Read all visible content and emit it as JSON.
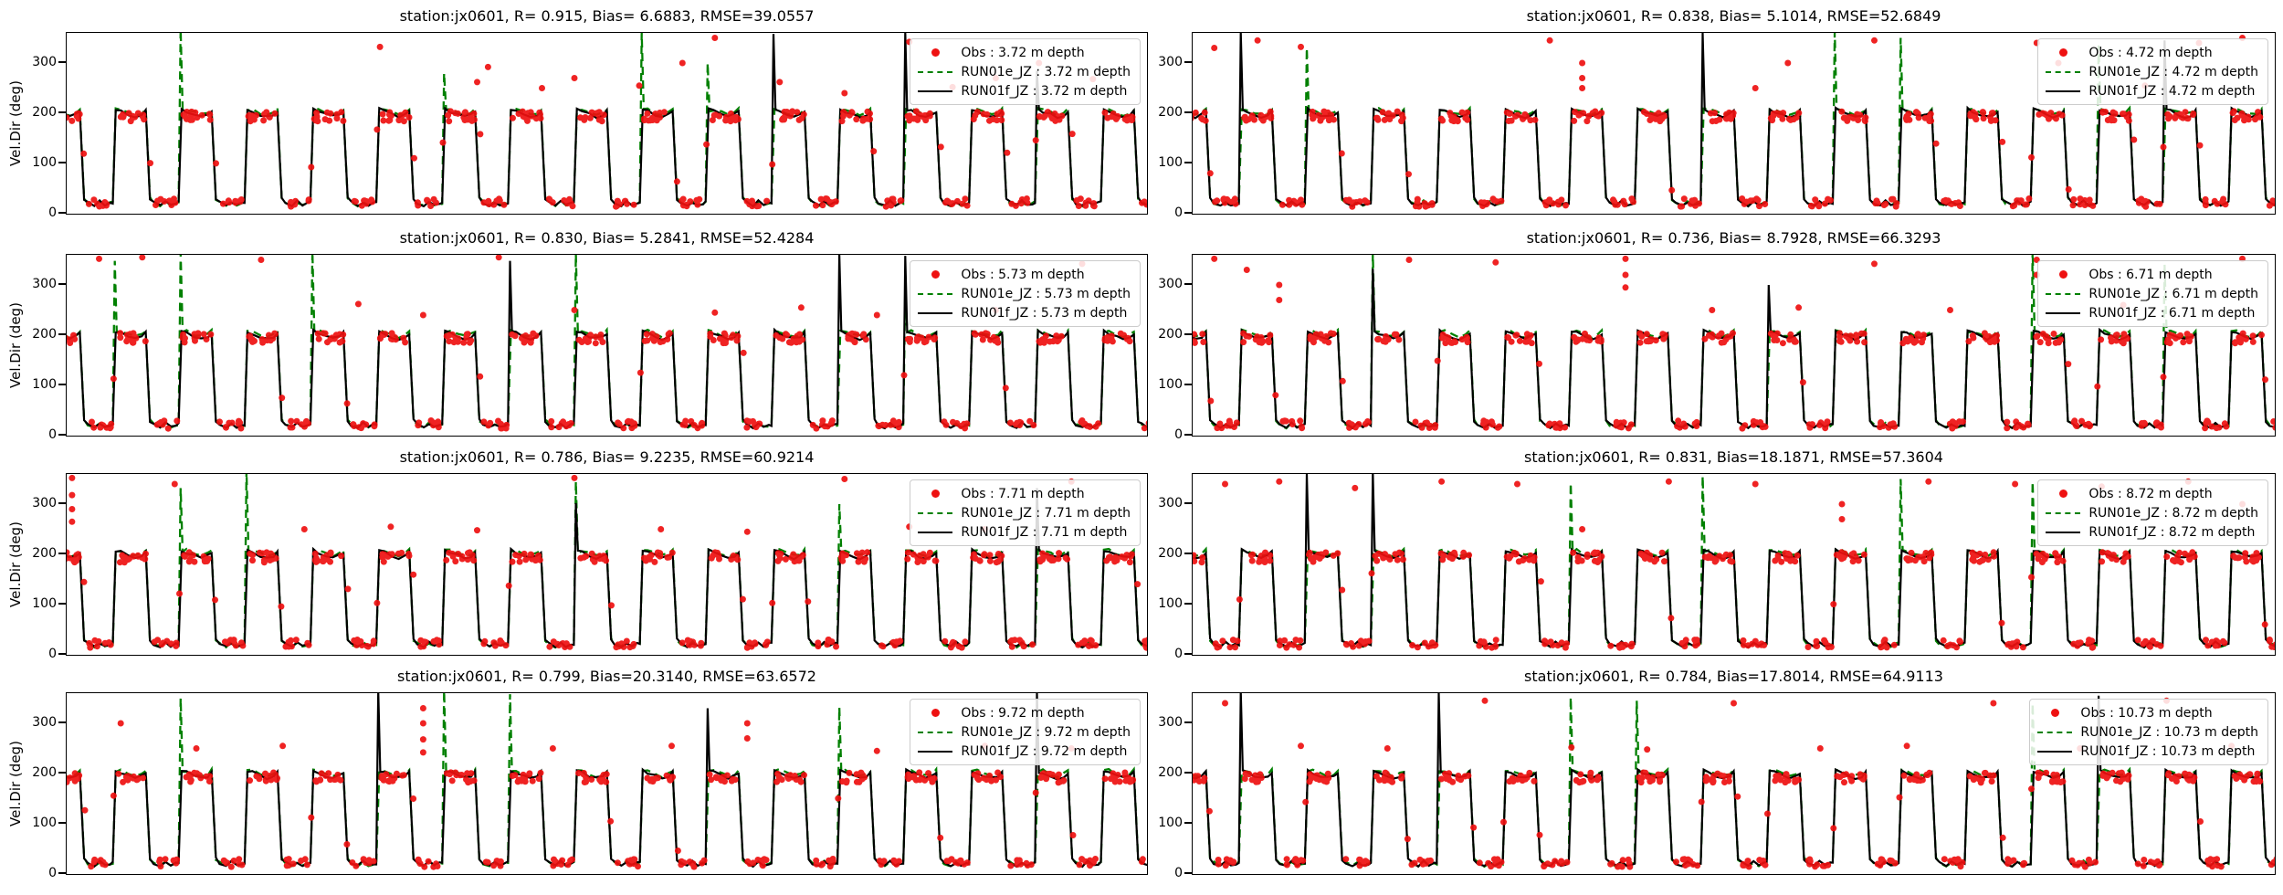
{
  "figure": {
    "ylabel": "Vel.Dir (deg)"
  },
  "colors": {
    "obs": "#ee1111",
    "run01e": "#008000",
    "run01f": "#000000",
    "legend_border": "#cccccc"
  },
  "chart_data": [
    {
      "type": "line",
      "title": "station:jx0601, R= 0.915, Bias= 6.6883, RMSE=39.0557",
      "ylabel": "Vel.Dir (deg)",
      "ylim": [
        0,
        360
      ],
      "yticks": [
        0,
        100,
        200,
        300
      ],
      "x_axis": "time (no tick labels shown)",
      "n_cycles": 16.4,
      "high": 200,
      "low": 20,
      "seed": 11,
      "series": [
        {
          "name": "Obs",
          "label": "Obs : 3.72 m depth",
          "style": "scatter",
          "color": "#ee1111"
        },
        {
          "name": "RUN01e_JZ",
          "label": "RUN01e_JZ : 3.72 m depth",
          "style": "dashed",
          "color": "#008000"
        },
        {
          "name": "RUN01f_JZ",
          "label": "RUN01f_JZ : 3.72 m depth",
          "style": "solid",
          "color": "#000000"
        }
      ],
      "e_spikes": [
        [
          0,
          362
        ],
        [
          2,
          368
        ],
        [
          6,
          280
        ],
        [
          9,
          360
        ],
        [
          10,
          300
        ]
      ],
      "f_spikes": [
        [
          0,
          318
        ],
        [
          11,
          358
        ],
        [
          13,
          362
        ],
        [
          15,
          285
        ]
      ],
      "obs_outliers": [
        [
          0.29,
          332
        ],
        [
          0.38,
          262
        ],
        [
          0.39,
          292
        ],
        [
          0.44,
          250
        ],
        [
          0.47,
          270
        ],
        [
          0.53,
          255
        ],
        [
          0.57,
          300
        ],
        [
          0.6,
          350
        ],
        [
          0.66,
          262
        ],
        [
          0.72,
          240
        ],
        [
          0.78,
          342
        ],
        [
          0.82,
          252
        ],
        [
          0.86,
          270
        ],
        [
          0.9,
          300
        ],
        [
          0.95,
          268
        ]
      ]
    },
    {
      "type": "line",
      "title": "station:jx0601, R= 0.838, Bias= 5.1014, RMSE=52.6849",
      "ylim": [
        0,
        360
      ],
      "yticks": [
        0,
        100,
        200,
        300
      ],
      "x_axis": "time (no tick labels shown)",
      "n_cycles": 16.4,
      "high": 200,
      "low": 20,
      "seed": 22,
      "series": [
        {
          "name": "Obs",
          "label": "Obs : 4.72 m depth",
          "style": "scatter",
          "color": "#ee1111"
        },
        {
          "name": "RUN01e_JZ",
          "label": "RUN01e_JZ : 4.72 m depth",
          "style": "dashed",
          "color": "#008000"
        },
        {
          "name": "RUN01f_JZ",
          "label": "RUN01f_JZ : 4.72 m depth",
          "style": "solid",
          "color": "#000000"
        }
      ],
      "e_spikes": [
        [
          2,
          330
        ],
        [
          10,
          362
        ],
        [
          11,
          350
        ],
        [
          14,
          335
        ]
      ],
      "f_spikes": [
        [
          1,
          362
        ],
        [
          8,
          360
        ],
        [
          15,
          345
        ]
      ],
      "obs_outliers": [
        [
          0.02,
          330
        ],
        [
          0.06,
          345
        ],
        [
          0.1,
          332
        ],
        [
          0.33,
          345
        ],
        [
          0.36,
          300
        ],
        [
          0.36,
          270
        ],
        [
          0.36,
          250
        ],
        [
          0.52,
          250
        ],
        [
          0.55,
          300
        ],
        [
          0.63,
          345
        ],
        [
          0.78,
          340
        ],
        [
          0.8,
          300
        ],
        [
          0.88,
          255
        ],
        [
          0.93,
          340
        ],
        [
          0.97,
          350
        ]
      ]
    },
    {
      "type": "line",
      "title": "station:jx0601, R= 0.830, Bias= 5.2841, RMSE=52.4284",
      "ylabel": "Vel.Dir (deg)",
      "ylim": [
        0,
        360
      ],
      "yticks": [
        0,
        100,
        200,
        300
      ],
      "x_axis": "time (no tick labels shown)",
      "n_cycles": 16.4,
      "high": 200,
      "low": 20,
      "seed": 33,
      "series": [
        {
          "name": "Obs",
          "label": "Obs : 5.73 m depth",
          "style": "scatter",
          "color": "#ee1111"
        },
        {
          "name": "RUN01e_JZ",
          "label": "RUN01e_JZ : 5.73 m depth",
          "style": "dashed",
          "color": "#008000"
        },
        {
          "name": "RUN01f_JZ",
          "label": "RUN01f_JZ : 5.73 m depth",
          "style": "solid",
          "color": "#000000"
        }
      ],
      "e_spikes": [
        [
          1,
          348
        ],
        [
          2,
          365
        ],
        [
          4,
          368
        ],
        [
          8,
          362
        ],
        [
          13,
          290
        ]
      ],
      "f_spikes": [
        [
          7,
          348
        ],
        [
          12,
          362
        ],
        [
          13,
          358
        ]
      ],
      "obs_outliers": [
        [
          0.03,
          352
        ],
        [
          0.07,
          355
        ],
        [
          0.18,
          350
        ],
        [
          0.27,
          262
        ],
        [
          0.33,
          240
        ],
        [
          0.4,
          355
        ],
        [
          0.47,
          250
        ],
        [
          0.6,
          245
        ],
        [
          0.68,
          255
        ],
        [
          0.75,
          240
        ],
        [
          0.86,
          250
        ],
        [
          0.94,
          342
        ]
      ]
    },
    {
      "type": "line",
      "title": "station:jx0601, R= 0.736, Bias= 8.7928, RMSE=66.3293",
      "ylim": [
        0,
        360
      ],
      "yticks": [
        0,
        100,
        200,
        300
      ],
      "x_axis": "time (no tick labels shown)",
      "n_cycles": 16.4,
      "high": 200,
      "low": 20,
      "seed": 44,
      "series": [
        {
          "name": "Obs",
          "label": "Obs : 6.71 m depth",
          "style": "scatter",
          "color": "#ee1111"
        },
        {
          "name": "RUN01e_JZ",
          "label": "RUN01e_JZ : 6.71 m depth",
          "style": "dashed",
          "color": "#008000"
        },
        {
          "name": "RUN01f_JZ",
          "label": "RUN01f_JZ : 6.71 m depth",
          "style": "solid",
          "color": "#000000"
        }
      ],
      "e_spikes": [
        [
          3,
          362
        ],
        [
          13,
          368
        ],
        [
          15,
          342
        ]
      ],
      "f_spikes": [
        [
          3,
          332
        ],
        [
          9,
          300
        ]
      ],
      "obs_outliers": [
        [
          0.02,
          352
        ],
        [
          0.05,
          330
        ],
        [
          0.08,
          300
        ],
        [
          0.08,
          270
        ],
        [
          0.2,
          350
        ],
        [
          0.28,
          345
        ],
        [
          0.4,
          352
        ],
        [
          0.4,
          320
        ],
        [
          0.4,
          295
        ],
        [
          0.48,
          250
        ],
        [
          0.56,
          255
        ],
        [
          0.63,
          342
        ],
        [
          0.7,
          250
        ],
        [
          0.78,
          350
        ],
        [
          0.78,
          320
        ],
        [
          0.86,
          260
        ],
        [
          0.97,
          352
        ]
      ]
    },
    {
      "type": "line",
      "title": "station:jx0601, R= 0.786, Bias= 9.2235, RMSE=60.9214",
      "ylabel": "Vel.Dir (deg)",
      "ylim": [
        0,
        360
      ],
      "yticks": [
        0,
        100,
        200,
        300
      ],
      "x_axis": "time (no tick labels shown)",
      "n_cycles": 16.4,
      "high": 200,
      "low": 20,
      "seed": 55,
      "series": [
        {
          "name": "Obs",
          "label": "Obs : 7.71 m depth",
          "style": "scatter",
          "color": "#ee1111"
        },
        {
          "name": "RUN01e_JZ",
          "label": "RUN01e_JZ : 7.71 m depth",
          "style": "dashed",
          "color": "#008000"
        },
        {
          "name": "RUN01f_JZ",
          "label": "RUN01f_JZ : 7.71 m depth",
          "style": "solid",
          "color": "#000000"
        }
      ],
      "e_spikes": [
        [
          2,
          332
        ],
        [
          3,
          368
        ],
        [
          8,
          345
        ],
        [
          12,
          300
        ]
      ],
      "f_spikes": [
        [
          8,
          302
        ],
        [
          15,
          332
        ]
      ],
      "obs_outliers": [
        [
          0.005,
          352
        ],
        [
          0.005,
          318
        ],
        [
          0.005,
          290
        ],
        [
          0.005,
          265
        ],
        [
          0.1,
          340
        ],
        [
          0.22,
          250
        ],
        [
          0.3,
          255
        ],
        [
          0.38,
          248
        ],
        [
          0.47,
          352
        ],
        [
          0.55,
          250
        ],
        [
          0.63,
          245
        ],
        [
          0.72,
          350
        ],
        [
          0.78,
          255
        ],
        [
          0.85,
          250
        ],
        [
          0.93,
          345
        ]
      ]
    },
    {
      "type": "line",
      "title": "station:jx0601, R= 0.831, Bias=18.1871, RMSE=57.3604",
      "ylim": [
        0,
        360
      ],
      "yticks": [
        0,
        100,
        200,
        300
      ],
      "x_axis": "time (no tick labels shown)",
      "n_cycles": 16.4,
      "high": 200,
      "low": 20,
      "seed": 66,
      "series": [
        {
          "name": "Obs",
          "label": "Obs : 8.72 m depth",
          "style": "scatter",
          "color": "#ee1111"
        },
        {
          "name": "RUN01e_JZ",
          "label": "RUN01e_JZ : 8.72 m depth",
          "style": "dashed",
          "color": "#008000"
        },
        {
          "name": "RUN01f_JZ",
          "label": "RUN01f_JZ : 8.72 m depth",
          "style": "solid",
          "color": "#000000"
        }
      ],
      "e_spikes": [
        [
          6,
          342
        ],
        [
          8,
          356
        ],
        [
          11,
          350
        ],
        [
          13,
          345
        ]
      ],
      "f_spikes": [
        [
          2,
          360
        ],
        [
          3,
          365
        ]
      ],
      "obs_outliers": [
        [
          0.03,
          340
        ],
        [
          0.08,
          345
        ],
        [
          0.15,
          332
        ],
        [
          0.23,
          345
        ],
        [
          0.3,
          340
        ],
        [
          0.36,
          250
        ],
        [
          0.44,
          345
        ],
        [
          0.52,
          340
        ],
        [
          0.6,
          300
        ],
        [
          0.6,
          270
        ],
        [
          0.68,
          345
        ],
        [
          0.76,
          340
        ],
        [
          0.84,
          335
        ],
        [
          0.92,
          345
        ],
        [
          0.97,
          300
        ]
      ]
    },
    {
      "type": "line",
      "title": "station:jx0601, R= 0.799, Bias=20.3140, RMSE=63.6572",
      "ylabel": "Vel.Dir (deg)",
      "ylim": [
        0,
        360
      ],
      "yticks": [
        0,
        100,
        200,
        300
      ],
      "x_axis": "time (no tick labels shown)",
      "n_cycles": 16.4,
      "high": 198,
      "low": 20,
      "seed": 77,
      "series": [
        {
          "name": "Obs",
          "label": "Obs : 9.72 m depth",
          "style": "scatter",
          "color": "#ee1111"
        },
        {
          "name": "RUN01e_JZ",
          "label": "RUN01e_JZ : 9.72 m depth",
          "style": "dashed",
          "color": "#008000"
        },
        {
          "name": "RUN01f_JZ",
          "label": "RUN01f_JZ : 9.72 m depth",
          "style": "solid",
          "color": "#000000"
        }
      ],
      "e_spikes": [
        [
          2,
          350
        ],
        [
          6,
          365
        ],
        [
          7,
          358
        ],
        [
          12,
          332
        ]
      ],
      "f_spikes": [
        [
          0,
          358
        ],
        [
          5,
          365
        ],
        [
          10,
          330
        ],
        [
          15,
          360
        ]
      ],
      "obs_outliers": [
        [
          0.05,
          300
        ],
        [
          0.12,
          250
        ],
        [
          0.2,
          255
        ],
        [
          0.33,
          330
        ],
        [
          0.33,
          300
        ],
        [
          0.33,
          268
        ],
        [
          0.33,
          242
        ],
        [
          0.45,
          250
        ],
        [
          0.56,
          255
        ],
        [
          0.63,
          300
        ],
        [
          0.63,
          270
        ],
        [
          0.75,
          245
        ],
        [
          0.85,
          255
        ],
        [
          0.93,
          250
        ]
      ]
    },
    {
      "type": "line",
      "title": "station:jx0601, R= 0.784, Bias=17.8014, RMSE=64.9113",
      "ylim": [
        0,
        360
      ],
      "yticks": [
        0,
        100,
        200,
        300
      ],
      "x_axis": "time (no tick labels shown)",
      "n_cycles": 16.4,
      "high": 198,
      "low": 20,
      "seed": 88,
      "series": [
        {
          "name": "Obs",
          "label": "Obs : 10.73 m depth",
          "style": "scatter",
          "color": "#ee1111"
        },
        {
          "name": "RUN01e_JZ",
          "label": "RUN01e_JZ : 10.73 m depth",
          "style": "dashed",
          "color": "#008000"
        },
        {
          "name": "RUN01f_JZ",
          "label": "RUN01f_JZ : 10.73 m depth",
          "style": "solid",
          "color": "#000000"
        }
      ],
      "e_spikes": [
        [
          6,
          352
        ],
        [
          7,
          345
        ],
        [
          13,
          340
        ]
      ],
      "f_spikes": [
        [
          1,
          365
        ],
        [
          4,
          360
        ],
        [
          14,
          355
        ]
      ],
      "obs_outliers": [
        [
          0.03,
          340
        ],
        [
          0.1,
          255
        ],
        [
          0.18,
          250
        ],
        [
          0.27,
          345
        ],
        [
          0.35,
          252
        ],
        [
          0.42,
          248
        ],
        [
          0.5,
          340
        ],
        [
          0.58,
          250
        ],
        [
          0.66,
          255
        ],
        [
          0.74,
          340
        ],
        [
          0.82,
          250
        ],
        [
          0.9,
          345
        ],
        [
          0.96,
          255
        ]
      ]
    }
  ]
}
